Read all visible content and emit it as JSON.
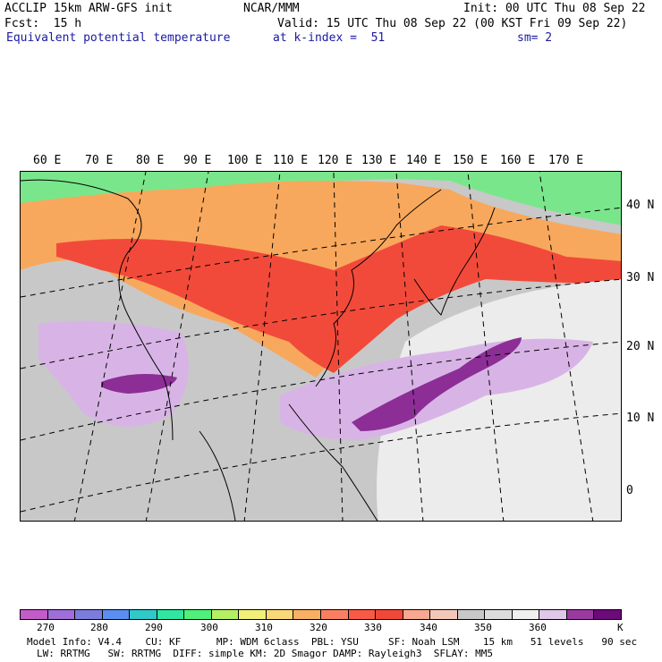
{
  "header": {
    "model": "ACCLIP 15km ARW-GFS init",
    "org": "NCAR/MMM",
    "init": "Init: 00 UTC Thu 08 Sep 22",
    "fcst": "Fcst:  15 h",
    "valid": "Valid: 15 UTC Thu 08 Sep 22 (00 KST Fri 09 Sep 22)",
    "field": "Equivalent potential temperature",
    "level": "at k-index =  51",
    "smooth": "sm= 2"
  },
  "map": {
    "lon_labels": [
      "60 E",
      "70 E",
      "80 E",
      "90 E",
      "100 E",
      "110 E",
      "120 E",
      "130 E",
      "140 E",
      "150 E",
      "160 E",
      "170 E"
    ],
    "lat_labels": [
      "40 N",
      "30 N",
      "20 N",
      "10 N",
      "0"
    ]
  },
  "colorbar": {
    "colors": [
      "#c45cc8",
      "#a06ed8",
      "#7c7cdc",
      "#5a8ef0",
      "#30c8c8",
      "#30e6a0",
      "#50f07a",
      "#b4f064",
      "#f0f07a",
      "#f8d878",
      "#f8b064",
      "#f88060",
      "#f85a46",
      "#f04838",
      "#f8a890",
      "#f4c8b8",
      "#c8c8c8",
      "#dcdcdc",
      "#f0f0f0",
      "#e0c8e8",
      "#9a3aa0",
      "#6c0a7a"
    ],
    "labels": [
      "270",
      "280",
      "290",
      "300",
      "310",
      "320",
      "330",
      "340",
      "350",
      "360"
    ],
    "unit": "K"
  },
  "footer": {
    "line1": "Model Info: V4.4    CU: KF      MP: WDM 6class  PBL: YSU     SF: Noah LSM    15 km   51 levels   90 sec",
    "line2": "LW: RRTMG   SW: RRTMG  DIFF: simple KM: 2D Smagor DAMP: Rayleigh3  SFLAY: MM5"
  }
}
